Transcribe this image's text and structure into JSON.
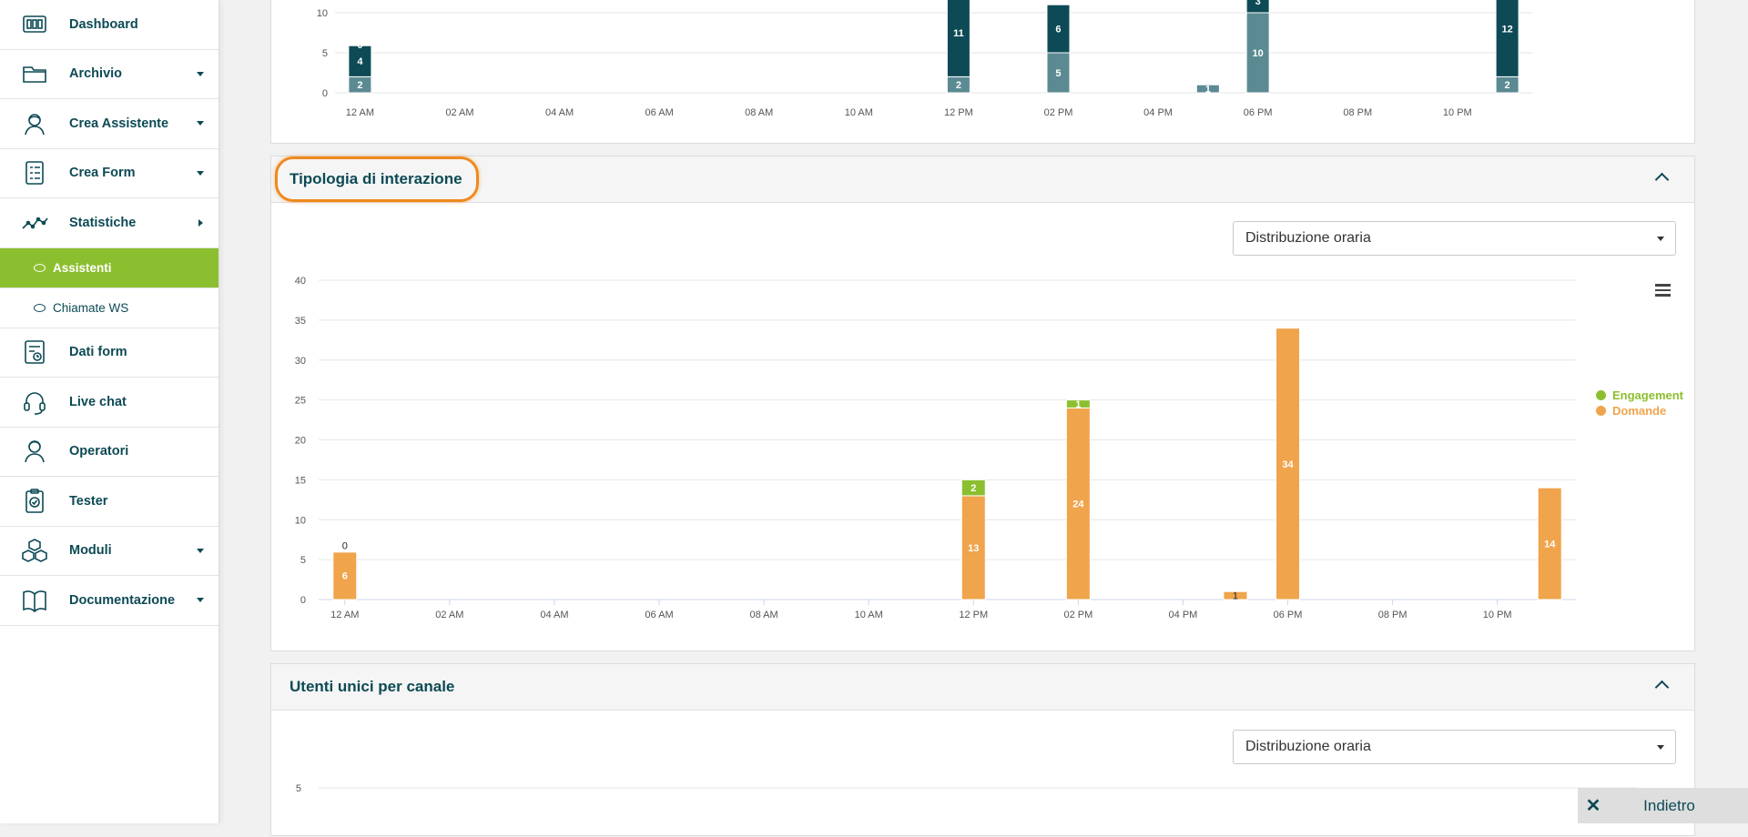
{
  "sidebar": {
    "items": [
      {
        "label": "Dashboard",
        "icon": "dashboard-icon",
        "has_caret": "none"
      },
      {
        "label": "Archivio",
        "icon": "folder-icon",
        "has_caret": "down"
      },
      {
        "label": "Crea Assistente",
        "icon": "assistant-icon",
        "has_caret": "down"
      },
      {
        "label": "Crea Form",
        "icon": "form-icon",
        "has_caret": "down"
      },
      {
        "label": "Statistiche",
        "icon": "stats-icon",
        "has_caret": "right"
      }
    ],
    "sub_items": [
      {
        "label": "Assistenti",
        "active": true
      },
      {
        "label": "Chiamate WS",
        "active": false
      }
    ],
    "items_after": [
      {
        "label": "Dati form",
        "icon": "form-data-icon",
        "has_caret": "none"
      },
      {
        "label": "Live chat",
        "icon": "headset-icon",
        "has_caret": "none"
      },
      {
        "label": "Operatori",
        "icon": "operator-icon",
        "has_caret": "none"
      },
      {
        "label": "Tester",
        "icon": "tester-icon",
        "has_caret": "none"
      },
      {
        "label": "Moduli",
        "icon": "modules-icon",
        "has_caret": "down"
      },
      {
        "label": "Documentazione",
        "icon": "book-icon",
        "has_caret": "down"
      }
    ]
  },
  "top_chart": {
    "yticks": [
      "0",
      "5",
      "10"
    ],
    "xticks": [
      "12 AM",
      "02 AM",
      "04 AM",
      "06 AM",
      "08 AM",
      "10 AM",
      "12 PM",
      "02 PM",
      "04 PM",
      "06 PM",
      "08 PM",
      "10 PM"
    ]
  },
  "panels": {
    "interaction": {
      "title": "Tipologia di interazione",
      "select_value": "Distribuzione oraria"
    },
    "unique_users": {
      "title": "Utenti unici per canale",
      "select_value": "Distribuzione oraria",
      "ytick": "5"
    }
  },
  "chart_data": [
    {
      "type": "bar",
      "stacked": true,
      "title": "",
      "x": [
        "12 AM",
        "02 AM",
        "04 AM",
        "06 AM",
        "08 AM",
        "10 AM",
        "12 PM",
        "02 PM",
        "04 PM",
        "06 PM",
        "08 PM",
        "10 PM"
      ],
      "note": "partially visible (cropped at top)",
      "bars": [
        {
          "hour": 0,
          "segments": [
            {
              "value": 2,
              "color": "#5b8a93"
            },
            {
              "value": 4,
              "color": "#0d4a55"
            },
            {
              "value": 0,
              "color": "#0d4a55"
            }
          ]
        },
        {
          "hour": 12,
          "segments": [
            {
              "value": 2,
              "color": "#5b8a93"
            },
            {
              "value": 11,
              "color": "#0d4a55"
            }
          ]
        },
        {
          "hour": 14,
          "segments": [
            {
              "value": 5,
              "color": "#5b8a93"
            },
            {
              "value": 6,
              "color": "#0d4a55"
            }
          ]
        },
        {
          "hour": 17,
          "segments": [
            {
              "value": 1,
              "color": "#5b8a93"
            }
          ]
        },
        {
          "hour": 18,
          "segments": [
            {
              "value": 10,
              "color": "#5b8a93"
            },
            {
              "value": 3,
              "color": "#0d4a55"
            }
          ]
        },
        {
          "hour": 23,
          "segments": [
            {
              "value": 2,
              "color": "#5b8a93"
            },
            {
              "value": 12,
              "color": "#0d4a55"
            }
          ]
        }
      ],
      "ylim": [
        0,
        10
      ]
    },
    {
      "type": "bar",
      "stacked": true,
      "title": "",
      "categories": [
        "12 AM",
        "02 AM",
        "04 AM",
        "06 AM",
        "08 AM",
        "10 AM",
        "12 PM",
        "02 PM",
        "04 PM",
        "06 PM",
        "08 PM",
        "10 PM"
      ],
      "yticks": [
        0,
        5,
        10,
        15,
        20,
        25,
        30,
        35,
        40
      ],
      "ylim": [
        0,
        40
      ],
      "legend": "right",
      "series": [
        {
          "name": "Domande",
          "color": "#f0a44c",
          "points": [
            {
              "hour": 0,
              "value": 6
            },
            {
              "hour": 12,
              "value": 13
            },
            {
              "hour": 14,
              "value": 24
            },
            {
              "hour": 17,
              "value": 1
            },
            {
              "hour": 18,
              "value": 34
            },
            {
              "hour": 23,
              "value": 14
            }
          ]
        },
        {
          "name": "Engagement",
          "color": "#8cbf2f",
          "points": [
            {
              "hour": 0,
              "value": 0
            },
            {
              "hour": 12,
              "value": 2
            },
            {
              "hour": 14,
              "value": 1
            }
          ]
        }
      ]
    }
  ],
  "back_button": {
    "label": "Indietro",
    "close_glyph": "✕"
  }
}
